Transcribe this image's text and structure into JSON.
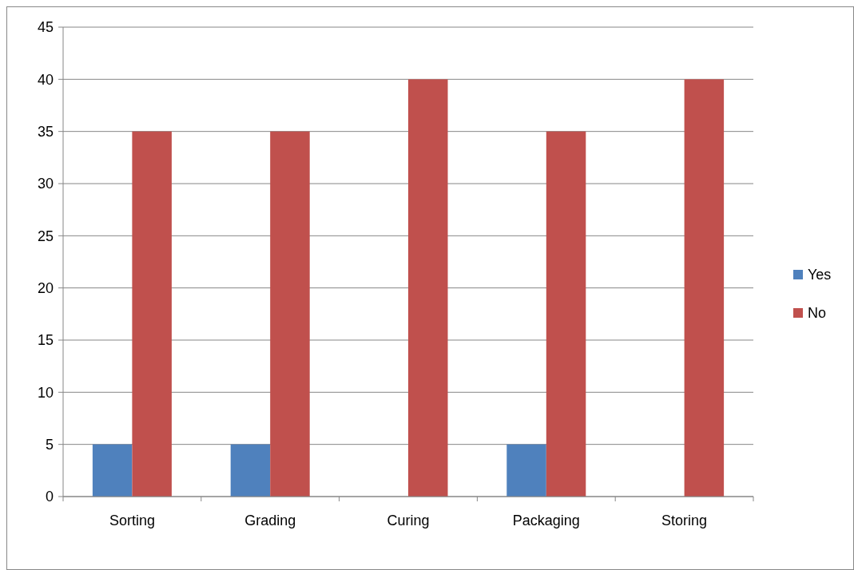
{
  "chart_data": {
    "type": "bar",
    "categories": [
      "Sorting",
      "Grading",
      "Curing",
      "Packaging",
      "Storing"
    ],
    "series": [
      {
        "name": "Yes",
        "color": "#4f81bd",
        "values": [
          5,
          5,
          0,
          5,
          0
        ]
      },
      {
        "name": "No",
        "color": "#c0504d",
        "values": [
          35,
          35,
          40,
          35,
          40
        ]
      }
    ],
    "ylim": [
      0,
      45
    ],
    "yticks": [
      0,
      5,
      10,
      15,
      20,
      25,
      30,
      35,
      40,
      45
    ],
    "grid": "y",
    "legend": "right"
  }
}
